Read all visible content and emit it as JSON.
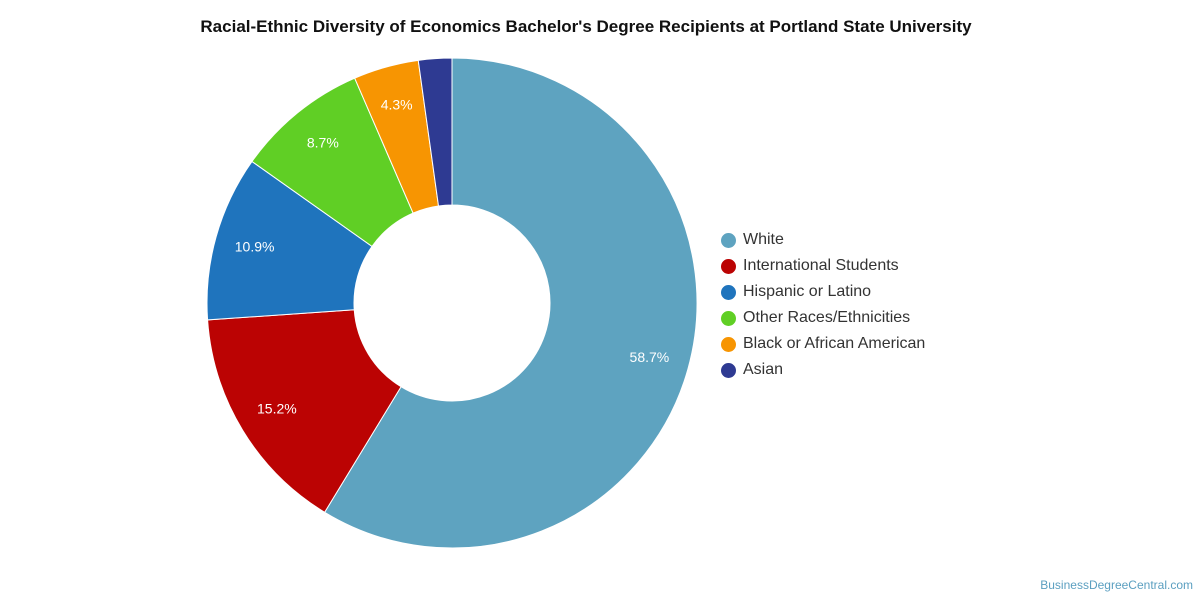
{
  "chart_data": {
    "type": "pie",
    "subtype": "donut",
    "title": "Racial-Ethnic Diversity of Economics Bachelor's Degree Recipients at Portland State University",
    "legend_position": "right",
    "slices": [
      {
        "label": "White",
        "value": 58.7,
        "value_label": "58.7%",
        "color": "#5ea3c0"
      },
      {
        "label": "International Students",
        "value": 15.2,
        "value_label": "15.2%",
        "color": "#bb0303"
      },
      {
        "label": "Hispanic or Latino",
        "value": 10.9,
        "value_label": "10.9%",
        "color": "#1f74bd"
      },
      {
        "label": "Other Races/Ethnicities",
        "value": 8.7,
        "value_label": "8.7%",
        "color": "#60cf25"
      },
      {
        "label": "Black or African American",
        "value": 4.3,
        "value_label": "4.3%",
        "color": "#f79502"
      },
      {
        "label": "Asian",
        "value": 2.2,
        "value_label": "",
        "color": "#2e3a92"
      }
    ]
  },
  "watermark": "BusinessDegreeCentral.com"
}
